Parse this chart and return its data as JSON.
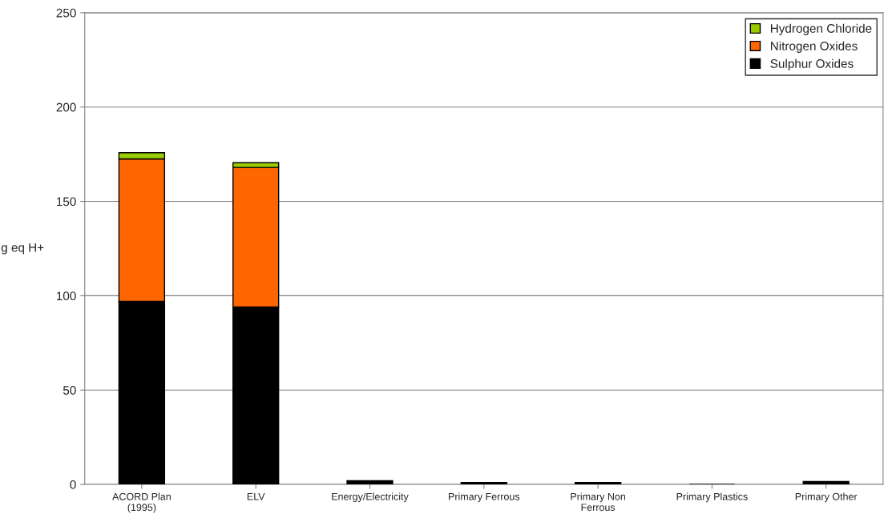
{
  "chart_data": {
    "type": "bar",
    "stacked": true,
    "ylabel": "g eq H+",
    "categories": [
      "ACORD Plan\n(1995)",
      "ELV",
      "Energy/Electricity",
      "Primary Ferrous",
      "Primary Non\nFerrous",
      "Primary Plastics",
      "Primary Other"
    ],
    "series": [
      {
        "name": "Sulphur Oxides",
        "color": "#000000",
        "values": [
          97,
          94,
          2,
          1,
          1,
          0,
          1.5
        ]
      },
      {
        "name": "Nitrogen Oxides",
        "color": "#ff6600",
        "values": [
          75.5,
          74,
          null,
          null,
          null,
          null,
          null
        ]
      },
      {
        "name": "Hydrogen Chloride",
        "color": "#99cc00",
        "values": [
          3.3,
          2.5,
          null,
          null,
          null,
          null,
          null
        ]
      }
    ],
    "ylim": [
      0,
      250
    ],
    "yticks": [
      0,
      50,
      100,
      150,
      200,
      250
    ],
    "grid": "y",
    "legend": "top right"
  }
}
